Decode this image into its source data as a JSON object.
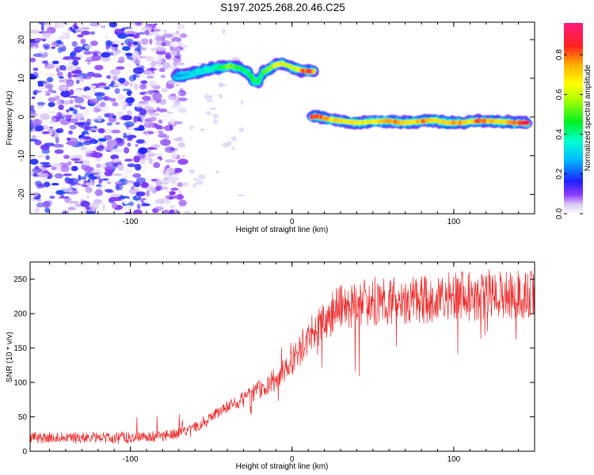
{
  "title": "S197.2025.268.20.46.C25",
  "chart_data": [
    {
      "id": "spectrogram",
      "type": "heatmap",
      "xlabel": "Height of straight line (km)",
      "ylabel": "Frequency (Hz)",
      "xlim": [
        -162,
        150
      ],
      "ylim": [
        -25,
        24.5
      ],
      "xticks": [
        -100,
        0,
        100
      ],
      "yticks": [
        -20,
        -10,
        0,
        10,
        20
      ],
      "colorbar": {
        "label": "Normalized spectral amplitude",
        "range": [
          0,
          0.96
        ],
        "ticks": [
          0.0,
          0.2,
          0.4,
          0.6,
          0.8
        ]
      },
      "noise_region": {
        "x": [
          -162,
          -75
        ],
        "y": [
          -25,
          24.5
        ],
        "amplitude": [
          0.0,
          0.2
        ]
      },
      "ridge_upper": {
        "x": [
          -72,
          -65,
          -58,
          -50,
          -44,
          -38,
          -32,
          -27,
          -24,
          -21,
          -18,
          -14,
          -10,
          -6,
          -2,
          2,
          6,
          10,
          14
        ],
        "y": [
          10.5,
          11,
          11.5,
          12.5,
          12.8,
          13.2,
          12.6,
          11.5,
          9.5,
          9,
          11.5,
          12.5,
          13.5,
          13.8,
          13.2,
          12.5,
          12,
          11.8,
          11.8
        ],
        "amplitude": [
          0.25,
          0.3,
          0.35,
          0.4,
          0.45,
          0.6,
          0.5,
          0.45,
          0.55,
          0.45,
          0.5,
          0.6,
          0.7,
          0.72,
          0.65,
          0.7,
          0.8,
          0.95,
          0.85
        ]
      },
      "ridge_lower": {
        "x": [
          12,
          16,
          22,
          30,
          40,
          50,
          60,
          68,
          75,
          82,
          88,
          96,
          104,
          110,
          116,
          122,
          130,
          138,
          146
        ],
        "y": [
          0,
          0.2,
          -0.5,
          -1,
          -1.5,
          -1.2,
          -1,
          -1.5,
          -1.3,
          -1,
          -0.8,
          -1.5,
          -1.5,
          -1.2,
          -1,
          -1,
          -1.2,
          -1.5,
          -1.5
        ],
        "amplitude": [
          0.9,
          0.92,
          0.8,
          0.75,
          0.7,
          0.72,
          0.8,
          0.85,
          0.7,
          0.9,
          0.72,
          0.75,
          0.85,
          0.7,
          0.95,
          0.8,
          0.72,
          0.88,
          0.92
        ]
      }
    },
    {
      "id": "snr",
      "type": "line",
      "xlabel": "Height of straight line (km)",
      "ylabel": "SNR (10 * v/v)",
      "xlim": [
        -162,
        150
      ],
      "ylim": [
        0,
        275
      ],
      "xticks": [
        -100,
        0,
        100
      ],
      "yticks": [
        0,
        50,
        100,
        150,
        200,
        250
      ],
      "color": "#ee2a2a",
      "x_step": 0.25,
      "trend": {
        "x": [
          -162,
          -130,
          -100,
          -80,
          -70,
          -60,
          -50,
          -40,
          -30,
          -20,
          -10,
          0,
          10,
          20,
          30,
          40,
          60,
          80,
          100,
          120,
          150
        ],
        "y": [
          20,
          20,
          20,
          22,
          26,
          35,
          50,
          65,
          75,
          90,
          105,
          130,
          165,
          190,
          210,
          215,
          218,
          220,
          225,
          225,
          228
        ]
      }
    }
  ]
}
